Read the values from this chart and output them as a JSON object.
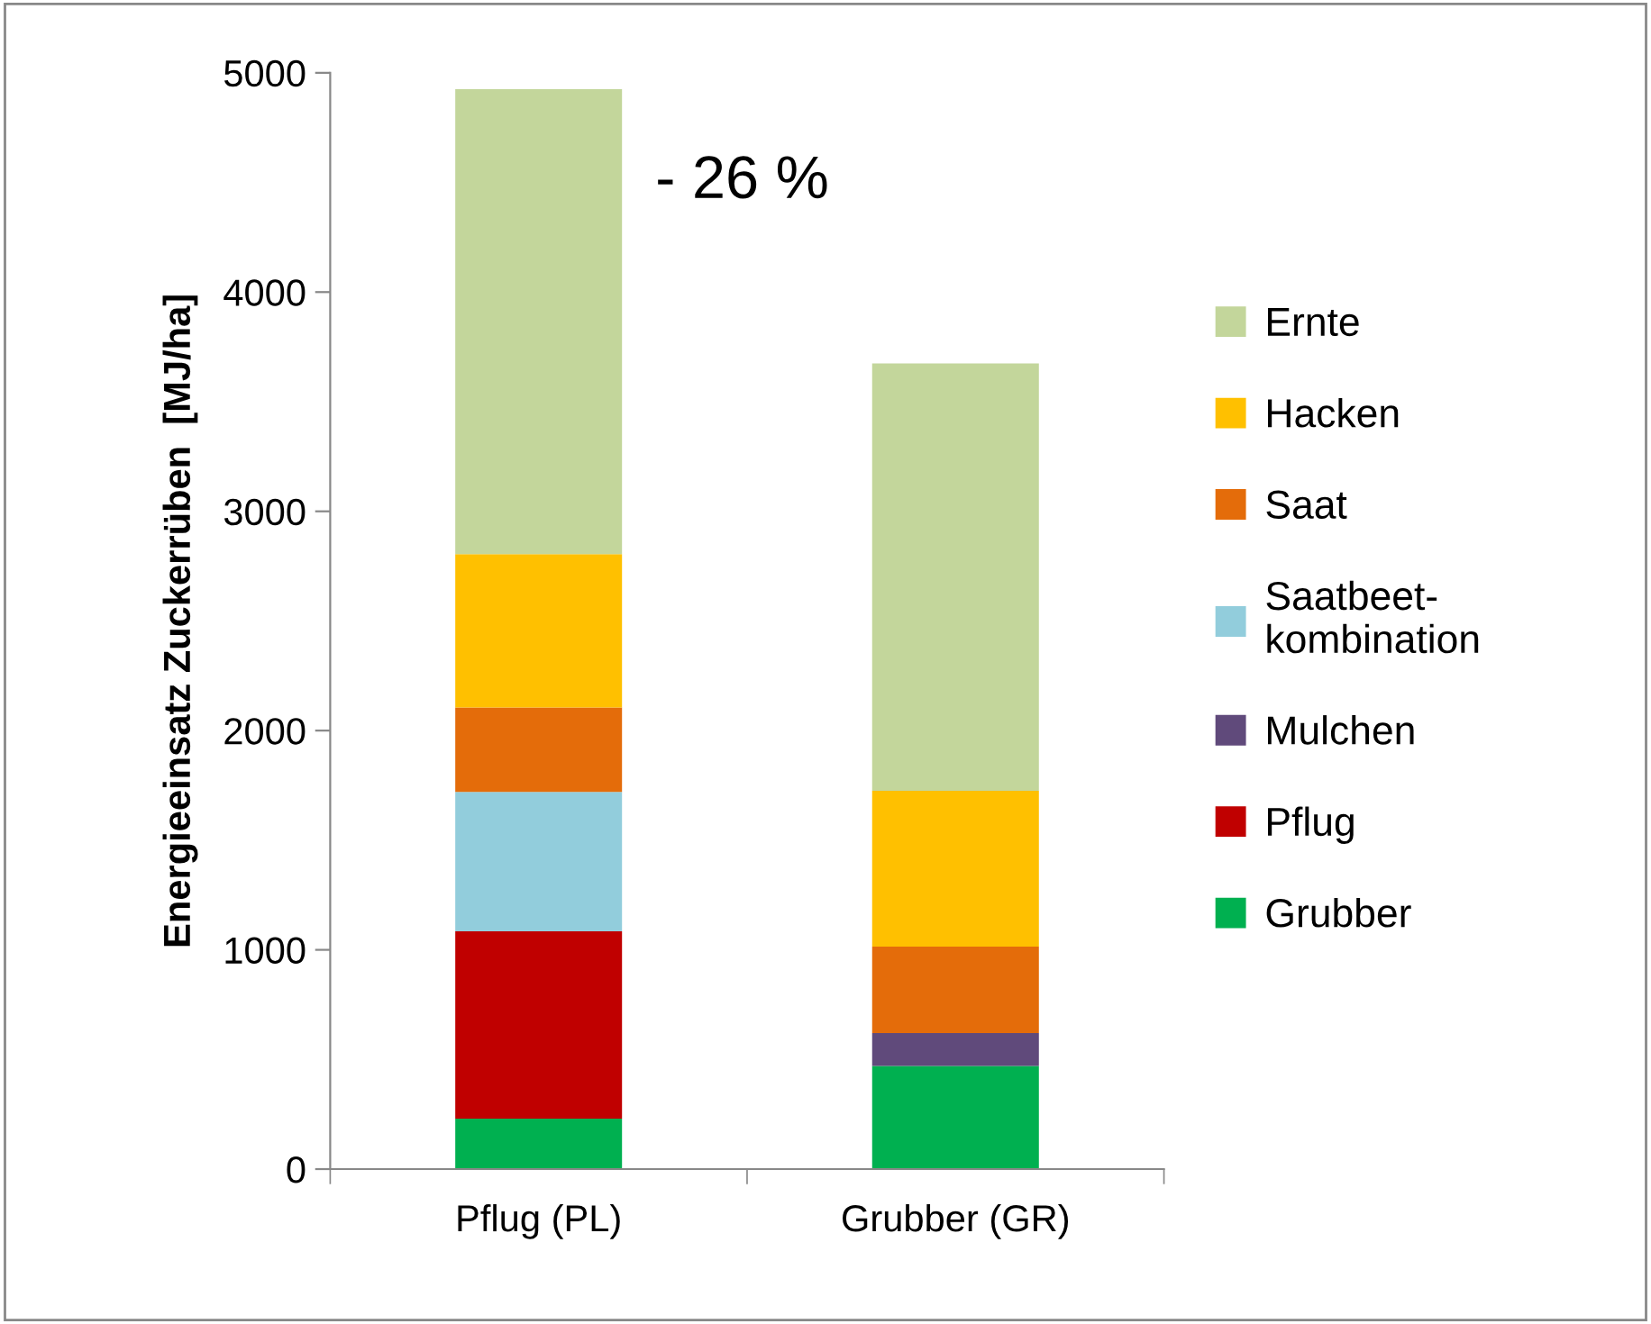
{
  "chart_data": {
    "type": "bar",
    "stacked": true,
    "ylabel": "Energieeinsatz Zuckerrüben  [MJ/ha]",
    "categories": [
      "Pflug (PL)",
      "Grubber (GR)"
    ],
    "series": [
      {
        "name": "Grubber",
        "color": "#00b050",
        "values": [
          230,
          470
        ]
      },
      {
        "name": "Pflug",
        "color": "#c00000",
        "values": [
          855,
          0
        ]
      },
      {
        "name": "Mulchen",
        "color": "#604a7b",
        "values": [
          0,
          150
        ]
      },
      {
        "name": "Saatbeet-\nkombination",
        "color": "#92cddc",
        "values": [
          635,
          0
        ]
      },
      {
        "name": "Saat",
        "color": "#e46c0a",
        "values": [
          385,
          395
        ]
      },
      {
        "name": "Hacken",
        "color": "#ffc000",
        "values": [
          700,
          710
        ]
      },
      {
        "name": "Ernte",
        "color": "#c3d69b",
        "values": [
          2120,
          1950
        ]
      }
    ],
    "ylim": [
      0,
      5000
    ],
    "yticks": [
      0,
      1000,
      2000,
      3000,
      4000,
      5000
    ],
    "grid": false,
    "legend": "right",
    "annotations": [
      "- 26 %"
    ]
  }
}
